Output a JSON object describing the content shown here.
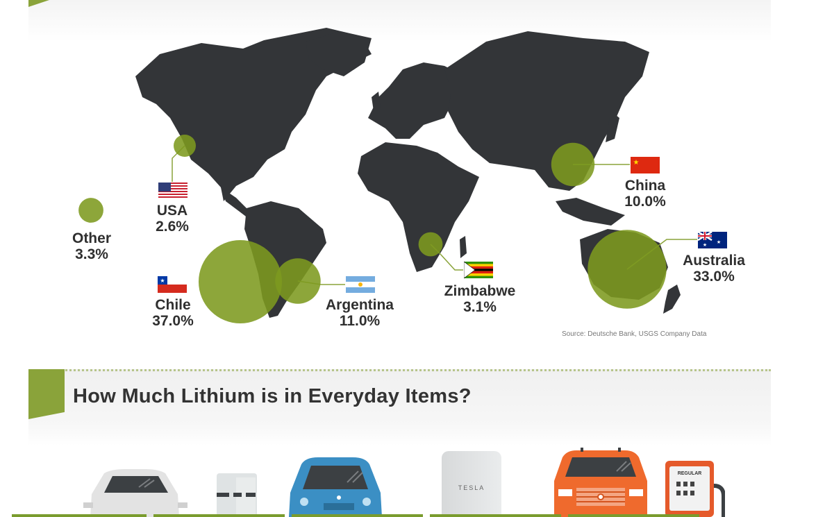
{
  "chart_data": {
    "type": "bubble-map",
    "title": "",
    "source": "Source: Deutsche Bank, USGS Company Data",
    "unit": "%",
    "countries": [
      {
        "name": "Chile",
        "value": 37.0,
        "label": "37.0%"
      },
      {
        "name": "Australia",
        "value": 33.0,
        "label": "33.0%"
      },
      {
        "name": "Argentina",
        "value": 11.0,
        "label": "11.0%"
      },
      {
        "name": "China",
        "value": 10.0,
        "label": "10.0%"
      },
      {
        "name": "Other",
        "value": 3.3,
        "label": "3.3%"
      },
      {
        "name": "Zimbabwe",
        "value": 3.1,
        "label": "3.1%"
      },
      {
        "name": "USA",
        "value": 2.6,
        "label": "2.6%"
      }
    ]
  },
  "section": {
    "title": "How Much Lithium is in Everyday Items?",
    "items": [
      {
        "name": "white-sedan-icon"
      },
      {
        "name": "battery-pack-icon"
      },
      {
        "name": "blue-car-icon"
      },
      {
        "name": "tesla-powerwall-icon",
        "text": "TESLA"
      },
      {
        "name": "orange-truck-icon"
      },
      {
        "name": "gas-pump-icon",
        "text": "REGULAR"
      }
    ]
  },
  "colors": {
    "land": "#333538",
    "bubble": "#7d9a1f",
    "accent": "#8aa33a",
    "line": "#8aa33a"
  }
}
